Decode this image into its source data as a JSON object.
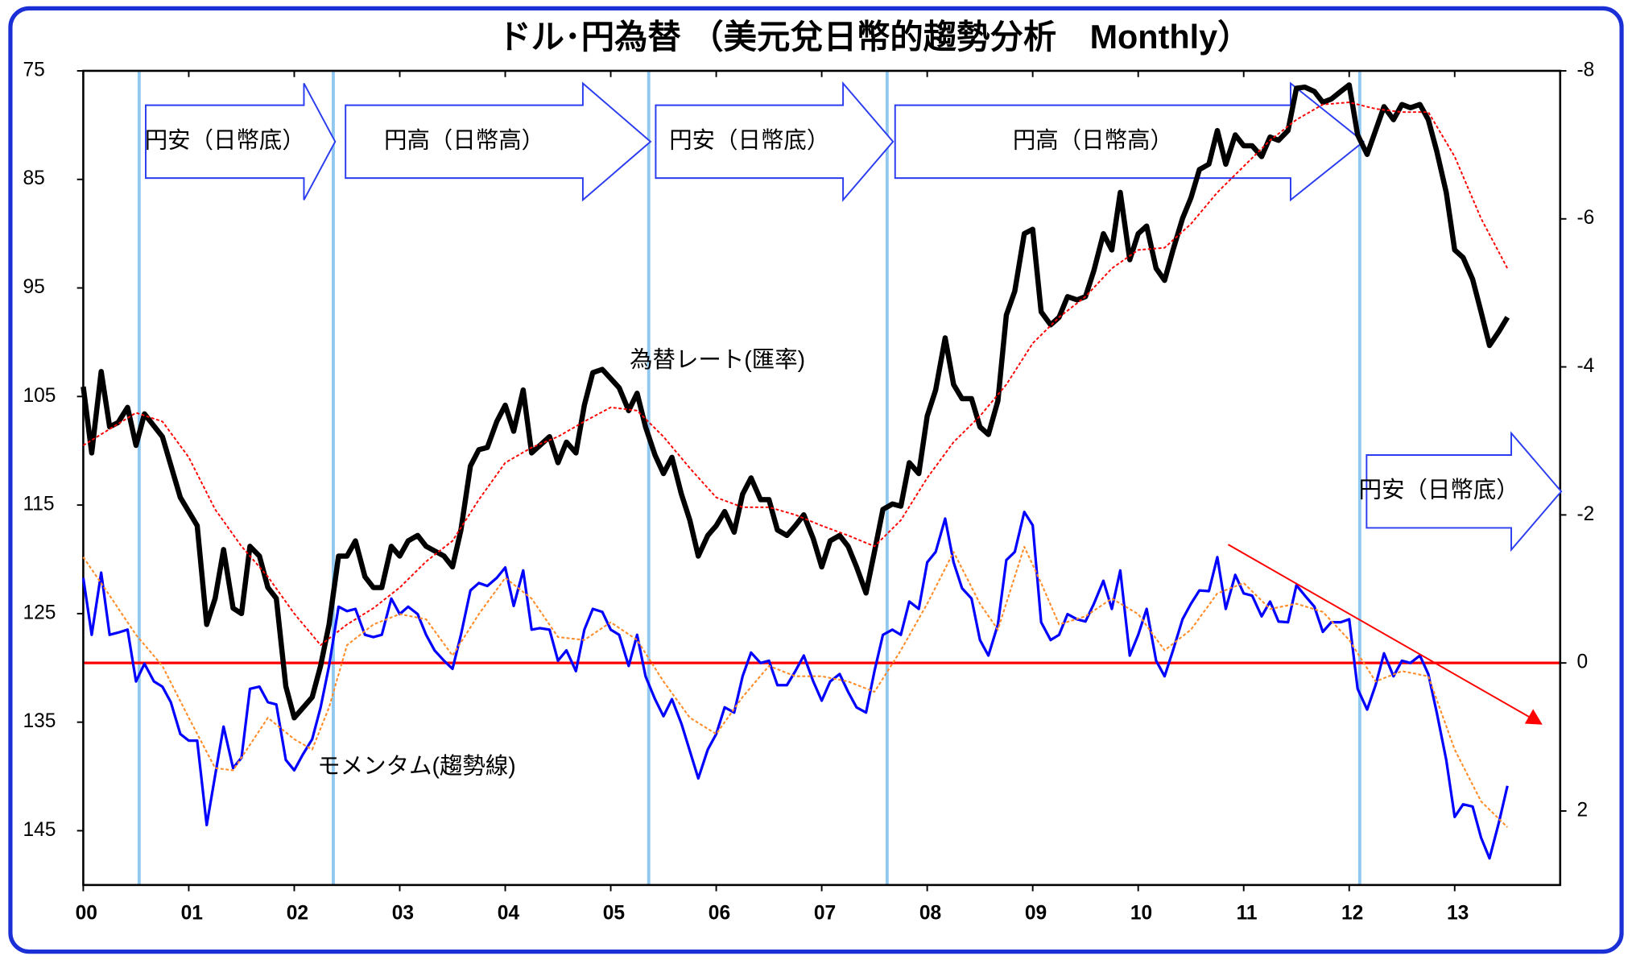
{
  "chart_data": {
    "type": "line",
    "title": "ドル･円為替 （美元兌日幣的趨勢分析　Monthly）",
    "xlim": [
      2000,
      2014
    ],
    "xticks": [
      {
        "value": 2000,
        "label": "00"
      },
      {
        "value": 2001,
        "label": "01"
      },
      {
        "value": 2002,
        "label": "02"
      },
      {
        "value": 2003,
        "label": "03"
      },
      {
        "value": 2004,
        "label": "04"
      },
      {
        "value": 2005,
        "label": "05"
      },
      {
        "value": 2006,
        "label": "06"
      },
      {
        "value": 2007,
        "label": "07"
      },
      {
        "value": 2008,
        "label": "08"
      },
      {
        "value": 2009,
        "label": "09"
      },
      {
        "value": 2010,
        "label": "10"
      },
      {
        "value": 2011,
        "label": "11"
      },
      {
        "value": 2012,
        "label": "12"
      },
      {
        "value": 2013,
        "label": "13"
      }
    ],
    "ylim": [
      150,
      75
    ],
    "yticks": [
      75,
      85,
      95,
      105,
      115,
      125,
      135,
      145
    ],
    "y2lim": [
      3,
      -8
    ],
    "y2ticks": [
      -8,
      -6,
      -4,
      -2,
      0,
      2
    ],
    "reference_line": {
      "value": 0,
      "axis": "y2",
      "color": "#ff0000"
    },
    "phase_lines": {
      "color": "#90c8f0",
      "x": [
        2000.53,
        2002.37,
        2005.36,
        2007.62,
        2012.1
      ]
    },
    "phase_labels": [
      "円安（日幣底）",
      "円高（日幣高）",
      "円安（日幣底）",
      "円高（日幣高）",
      "円安（日幣底）"
    ],
    "annotations": [
      "為替レート(匯率)",
      "モメンタム(趨勢線)"
    ],
    "series": [
      {
        "color": "#000000",
        "line_style": "solid",
        "axis": "y",
        "x": [
          2000.0,
          2000.08,
          2000.17,
          2000.25,
          2000.33,
          2000.42,
          2000.5,
          2000.58,
          2000.75,
          2000.92,
          2001.08,
          2001.17,
          2001.25,
          2001.33,
          2001.42,
          2001.5,
          2001.58,
          2001.67,
          2001.75,
          2001.83,
          2001.92,
          2002.0,
          2002.17,
          2002.25,
          2002.33,
          2002.42,
          2002.5,
          2002.58,
          2002.67,
          2002.75,
          2002.83,
          2002.92,
          2003.0,
          2003.08,
          2003.17,
          2003.25,
          2003.42,
          2003.5,
          2003.58,
          2003.67,
          2003.75,
          2003.83,
          2003.92,
          2004.0,
          2004.08,
          2004.17,
          2004.25,
          2004.42,
          2004.5,
          2004.58,
          2004.67,
          2004.75,
          2004.83,
          2004.92,
          2005.08,
          2005.17,
          2005.25,
          2005.33,
          2005.42,
          2005.5,
          2005.58,
          2005.67,
          2005.75,
          2005.83,
          2005.92,
          2006.0,
          2006.08,
          2006.17,
          2006.25,
          2006.33,
          2006.42,
          2006.5,
          2006.58,
          2006.67,
          2006.75,
          2006.83,
          2006.92,
          2007.0,
          2007.08,
          2007.17,
          2007.25,
          2007.33,
          2007.42,
          2007.5,
          2007.58,
          2007.67,
          2007.75,
          2007.83,
          2007.92,
          2008.0,
          2008.08,
          2008.17,
          2008.25,
          2008.33,
          2008.42,
          2008.5,
          2008.58,
          2008.67,
          2008.75,
          2008.83,
          2008.92,
          2009.0,
          2009.08,
          2009.17,
          2009.25,
          2009.33,
          2009.42,
          2009.5,
          2009.58,
          2009.67,
          2009.75,
          2009.83,
          2009.92,
          2010.0,
          2010.08,
          2010.17,
          2010.25,
          2010.33,
          2010.42,
          2010.5,
          2010.58,
          2010.67,
          2010.75,
          2010.83,
          2010.92,
          2011.0,
          2011.08,
          2011.17,
          2011.25,
          2011.33,
          2011.42,
          2011.5,
          2011.58,
          2011.67,
          2011.75,
          2011.83,
          2011.92,
          2012.0,
          2012.08,
          2012.17,
          2012.25,
          2012.33,
          2012.42,
          2012.5,
          2012.58,
          2012.67,
          2012.75,
          2012.83,
          2012.92,
          2013.0,
          2013.08,
          2013.17,
          2013.25,
          2013.33,
          2013.42,
          2013.5
        ],
        "values": [
          104.1,
          110.2,
          102.7,
          107.8,
          107.4,
          106.0,
          109.5,
          106.6,
          108.7,
          114.3,
          116.9,
          126.0,
          123.6,
          119.1,
          124.5,
          125.0,
          118.8,
          119.7,
          122.6,
          123.6,
          131.7,
          134.6,
          132.7,
          129.8,
          126.0,
          119.7,
          119.7,
          118.3,
          121.6,
          122.6,
          122.6,
          118.8,
          119.7,
          118.3,
          117.8,
          118.8,
          119.7,
          120.7,
          117.3,
          111.4,
          109.9,
          109.7,
          107.3,
          105.8,
          108.2,
          104.4,
          110.2,
          108.7,
          111.1,
          109.2,
          110.2,
          105.8,
          102.8,
          102.5,
          104.2,
          106.3,
          104.7,
          107.8,
          110.4,
          112.1,
          110.6,
          114.0,
          116.4,
          119.7,
          117.8,
          116.9,
          115.6,
          117.5,
          114.0,
          112.5,
          114.5,
          114.5,
          117.3,
          117.8,
          116.9,
          115.9,
          118.1,
          120.7,
          118.3,
          117.8,
          118.8,
          120.7,
          123.1,
          119.3,
          115.4,
          114.9,
          115.1,
          111.1,
          112.1,
          106.8,
          104.4,
          99.6,
          103.9,
          105.2,
          105.2,
          107.8,
          108.5,
          105.4,
          97.5,
          95.3,
          90.0,
          89.6,
          97.2,
          98.4,
          97.7,
          95.8,
          96.1,
          95.8,
          93.4,
          90.0,
          91.5,
          86.2,
          92.4,
          90.0,
          89.3,
          93.2,
          94.3,
          91.5,
          88.6,
          86.7,
          84.1,
          83.6,
          80.5,
          83.6,
          80.9,
          81.9,
          81.9,
          82.9,
          81.1,
          81.4,
          80.5,
          76.6,
          76.5,
          76.9,
          77.9,
          77.6,
          76.9,
          76.3,
          80.9,
          82.7,
          80.5,
          78.3,
          79.5,
          78.1,
          78.4,
          78.1,
          79.5,
          82.4,
          86.2,
          91.5,
          92.2,
          94.2,
          97.2,
          100.3,
          99.0,
          97.7
        ]
      },
      {
        "color": "#ff0000",
        "line_style": "dotted",
        "axis": "y",
        "x": [
          2000.0,
          2000.5,
          2000.75,
          2001.0,
          2001.25,
          2001.5,
          2001.75,
          2002.0,
          2002.25,
          2002.5,
          2002.75,
          2003.0,
          2003.25,
          2003.5,
          2003.75,
          2004.0,
          2004.25,
          2004.5,
          2004.75,
          2005.0,
          2005.25,
          2005.5,
          2005.75,
          2006.0,
          2006.25,
          2006.5,
          2006.75,
          2007.0,
          2007.25,
          2007.5,
          2007.75,
          2008.0,
          2008.25,
          2008.5,
          2008.75,
          2009.0,
          2009.25,
          2009.5,
          2009.75,
          2010.0,
          2010.25,
          2010.5,
          2010.75,
          2011.0,
          2011.25,
          2011.5,
          2011.75,
          2012.0,
          2012.25,
          2012.5,
          2012.75,
          2013.0,
          2013.25,
          2013.5
        ],
        "values": [
          109.5,
          106.5,
          107.3,
          110.6,
          115.4,
          118.8,
          121.6,
          125.0,
          127.9,
          126.0,
          124.5,
          122.6,
          120.2,
          118.3,
          114.5,
          111.1,
          109.7,
          108.7,
          107.3,
          106.0,
          106.3,
          108.7,
          111.6,
          114.3,
          115.2,
          115.2,
          115.9,
          116.9,
          117.8,
          118.8,
          116.4,
          112.5,
          109.2,
          106.8,
          103.9,
          100.1,
          97.7,
          95.8,
          93.2,
          91.5,
          91.3,
          89.1,
          86.2,
          83.8,
          81.4,
          79.5,
          78.1,
          77.9,
          78.5,
          78.8,
          78.8,
          82.9,
          88.6,
          93.2
        ]
      },
      {
        "color": "#0000ff",
        "line_style": "solid",
        "axis": "y2",
        "x": [
          2000.0,
          2000.08,
          2000.17,
          2000.25,
          2000.33,
          2000.42,
          2000.5,
          2000.58,
          2000.67,
          2000.75,
          2000.83,
          2000.92,
          2001.0,
          2001.08,
          2001.17,
          2001.25,
          2001.33,
          2001.42,
          2001.5,
          2001.58,
          2001.67,
          2001.75,
          2001.83,
          2001.92,
          2002.0,
          2002.08,
          2002.17,
          2002.25,
          2002.33,
          2002.42,
          2002.5,
          2002.58,
          2002.67,
          2002.75,
          2002.83,
          2002.92,
          2003.0,
          2003.08,
          2003.17,
          2003.25,
          2003.33,
          2003.42,
          2003.5,
          2003.58,
          2003.67,
          2003.75,
          2003.83,
          2003.92,
          2004.0,
          2004.08,
          2004.17,
          2004.25,
          2004.33,
          2004.42,
          2004.5,
          2004.58,
          2004.67,
          2004.75,
          2004.83,
          2004.92,
          2005.0,
          2005.08,
          2005.17,
          2005.25,
          2005.33,
          2005.42,
          2005.5,
          2005.58,
          2005.67,
          2005.75,
          2005.83,
          2005.92,
          2006.0,
          2006.08,
          2006.17,
          2006.25,
          2006.33,
          2006.42,
          2006.5,
          2006.58,
          2006.67,
          2006.75,
          2006.83,
          2006.92,
          2007.0,
          2007.08,
          2007.17,
          2007.25,
          2007.33,
          2007.42,
          2007.5,
          2007.58,
          2007.67,
          2007.75,
          2007.83,
          2007.92,
          2008.0,
          2008.08,
          2008.17,
          2008.25,
          2008.33,
          2008.42,
          2008.5,
          2008.58,
          2008.67,
          2008.75,
          2008.83,
          2008.92,
          2009.0,
          2009.08,
          2009.17,
          2009.25,
          2009.33,
          2009.42,
          2009.5,
          2009.58,
          2009.67,
          2009.75,
          2009.83,
          2009.92,
          2010.0,
          2010.08,
          2010.17,
          2010.25,
          2010.33,
          2010.42,
          2010.5,
          2010.58,
          2010.67,
          2010.75,
          2010.83,
          2010.92,
          2011.0,
          2011.08,
          2011.17,
          2011.25,
          2011.33,
          2011.42,
          2011.5,
          2011.58,
          2011.67,
          2011.75,
          2011.83,
          2011.92,
          2012.0,
          2012.08,
          2012.17,
          2012.25,
          2012.33,
          2012.42,
          2012.5,
          2012.58,
          2012.67,
          2012.75,
          2012.83,
          2012.92,
          2013.0,
          2013.08,
          2013.17,
          2013.25,
          2013.33,
          2013.42,
          2013.5
        ],
        "values": [
          -1.15,
          -0.38,
          -1.22,
          -0.38,
          -0.41,
          -0.45,
          0.25,
          0.01,
          0.25,
          0.32,
          0.53,
          0.96,
          1.05,
          1.05,
          2.19,
          1.52,
          0.86,
          1.42,
          1.28,
          0.35,
          0.32,
          0.53,
          0.56,
          1.31,
          1.45,
          1.24,
          1.03,
          0.6,
          0.04,
          -0.76,
          -0.7,
          -0.73,
          -0.38,
          -0.35,
          -0.38,
          -0.87,
          -0.66,
          -0.76,
          -0.66,
          -0.38,
          -0.17,
          -0.03,
          0.08,
          -0.38,
          -0.98,
          -1.08,
          -1.04,
          -1.15,
          -1.29,
          -0.77,
          -1.25,
          -0.45,
          -0.47,
          -0.45,
          -0.03,
          -0.17,
          0.11,
          -0.45,
          -0.73,
          -0.69,
          -0.45,
          -0.38,
          0.04,
          -0.38,
          0.18,
          0.49,
          0.72,
          0.49,
          0.82,
          1.19,
          1.56,
          1.17,
          0.96,
          0.6,
          0.67,
          0.18,
          -0.14,
          0.0,
          -0.03,
          0.3,
          0.3,
          0.11,
          -0.1,
          0.25,
          0.51,
          0.25,
          0.15,
          0.39,
          0.6,
          0.67,
          0.11,
          -0.38,
          -0.45,
          -0.38,
          -0.83,
          -0.73,
          -1.36,
          -1.5,
          -1.95,
          -1.36,
          -1.01,
          -0.87,
          -0.31,
          -0.1,
          -0.52,
          -1.39,
          -1.5,
          -2.04,
          -1.86,
          -0.55,
          -0.31,
          -0.38,
          -0.66,
          -0.59,
          -0.56,
          -0.8,
          -1.11,
          -0.73,
          -1.25,
          -0.1,
          -0.38,
          -0.73,
          -0.03,
          0.18,
          -0.17,
          -0.59,
          -0.8,
          -0.98,
          -0.97,
          -1.43,
          -0.73,
          -1.19,
          -0.94,
          -0.91,
          -0.63,
          -0.83,
          -0.56,
          -0.55,
          -1.05,
          -0.91,
          -0.76,
          -0.42,
          -0.55,
          -0.55,
          -0.59,
          0.35,
          0.63,
          0.3,
          -0.13,
          0.18,
          -0.03,
          0.0,
          -0.1,
          0.15,
          0.67,
          1.31,
          2.08,
          1.91,
          1.94,
          2.36,
          2.64,
          2.15,
          1.66
        ]
      },
      {
        "color": "#ff8c28",
        "line_style": "dotted",
        "axis": "y2",
        "x": [
          2000.0,
          2000.25,
          2000.5,
          2000.75,
          2001.0,
          2001.25,
          2001.42,
          2001.75,
          2002.0,
          2002.17,
          2002.33,
          2002.5,
          2002.75,
          2003.0,
          2003.25,
          2003.5,
          2003.75,
          2004.0,
          2004.25,
          2004.5,
          2004.75,
          2005.0,
          2005.25,
          2005.5,
          2005.75,
          2006.0,
          2006.25,
          2006.5,
          2006.75,
          2007.0,
          2007.25,
          2007.5,
          2007.75,
          2008.0,
          2008.25,
          2008.5,
          2008.67,
          2008.92,
          2009.08,
          2009.25,
          2009.5,
          2009.75,
          2010.0,
          2010.25,
          2010.5,
          2010.75,
          2011.0,
          2011.25,
          2011.5,
          2011.75,
          2012.0,
          2012.25,
          2012.5,
          2012.75,
          2013.0,
          2013.25,
          2013.5
        ],
        "values": [
          -1.43,
          -0.91,
          -0.38,
          0.04,
          0.74,
          1.42,
          1.45,
          0.74,
          1.03,
          1.17,
          0.6,
          -0.24,
          -0.52,
          -0.66,
          -0.59,
          -0.1,
          -0.66,
          -1.15,
          -0.87,
          -0.35,
          -0.31,
          -0.55,
          -0.31,
          0.25,
          0.74,
          0.96,
          0.46,
          0.04,
          0.18,
          0.18,
          0.25,
          0.39,
          -0.17,
          -0.8,
          -1.5,
          -0.8,
          -0.45,
          -1.57,
          -1.08,
          -0.52,
          -0.63,
          -0.87,
          -0.66,
          -0.17,
          -0.45,
          -0.94,
          -1.08,
          -0.73,
          -0.8,
          -0.69,
          -0.31,
          0.25,
          0.11,
          0.18,
          1.17,
          1.87,
          2.22
        ]
      }
    ]
  }
}
